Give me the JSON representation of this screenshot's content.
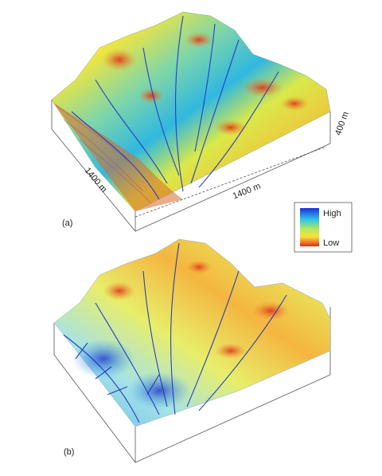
{
  "panels": [
    {
      "label": "(a)",
      "axis_labels": {
        "depth": "1400 m",
        "width": "1400 m",
        "height": "400 m"
      }
    },
    {
      "label": "(b)"
    }
  ],
  "legend": {
    "high": "High",
    "low": "Low"
  }
}
